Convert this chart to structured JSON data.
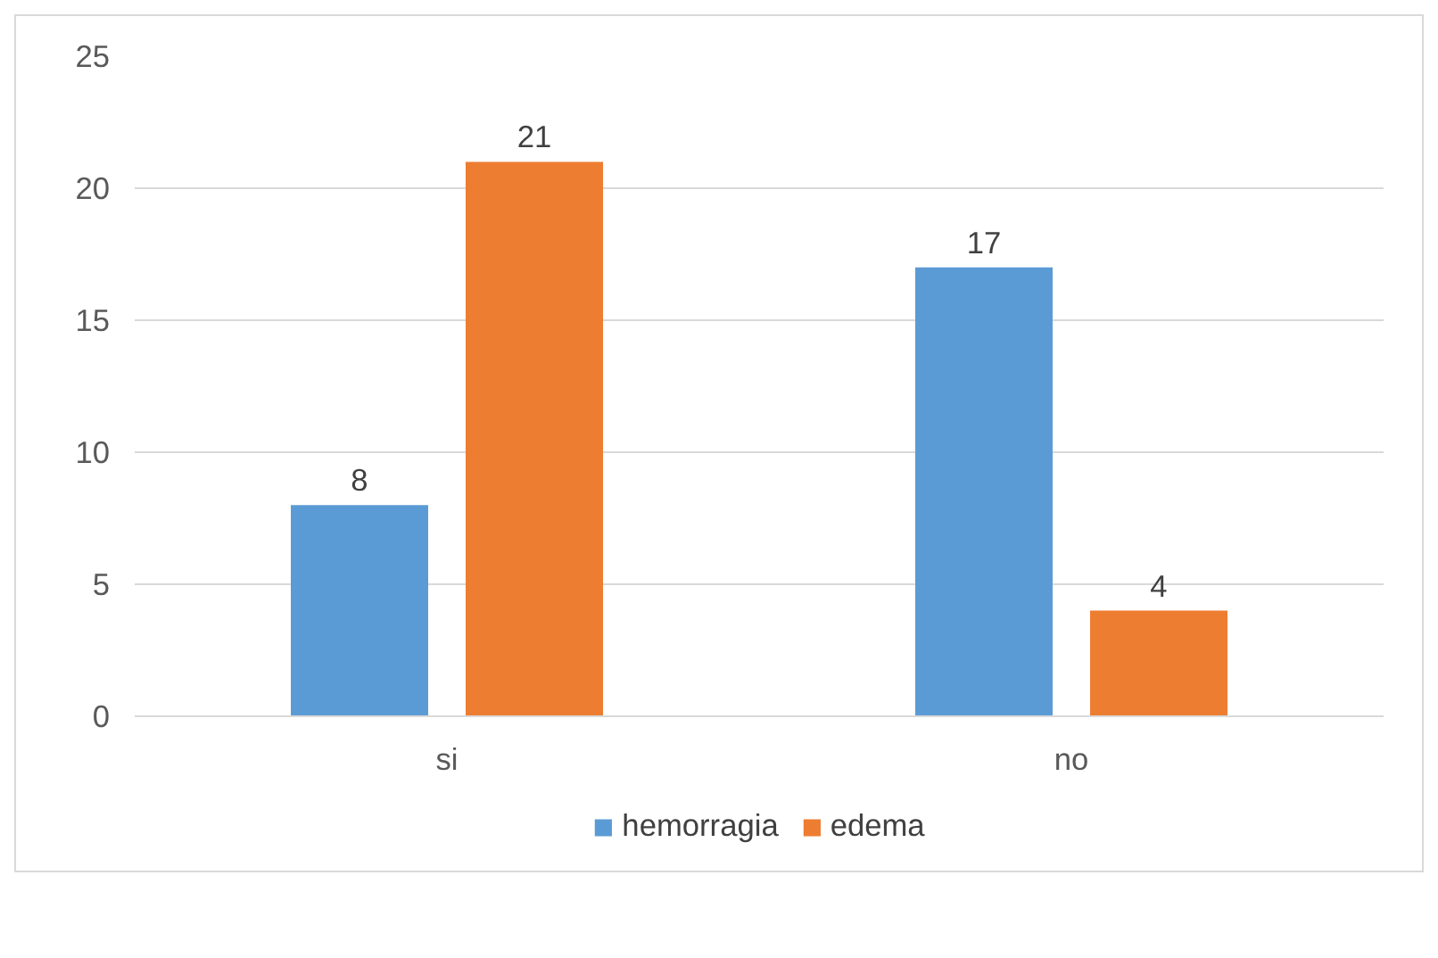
{
  "chart_data": {
    "type": "bar",
    "categories": [
      "si",
      "no"
    ],
    "series": [
      {
        "name": "hemorragia",
        "color": "#5b9bd5",
        "values": [
          8,
          17
        ]
      },
      {
        "name": "edema",
        "color": "#ed7d31",
        "values": [
          21,
          4
        ]
      }
    ],
    "ylim": [
      0,
      25
    ],
    "yticks": [
      0,
      5,
      10,
      15,
      20,
      25
    ],
    "grid": "y",
    "legend": "bottom",
    "data_labels": true
  }
}
